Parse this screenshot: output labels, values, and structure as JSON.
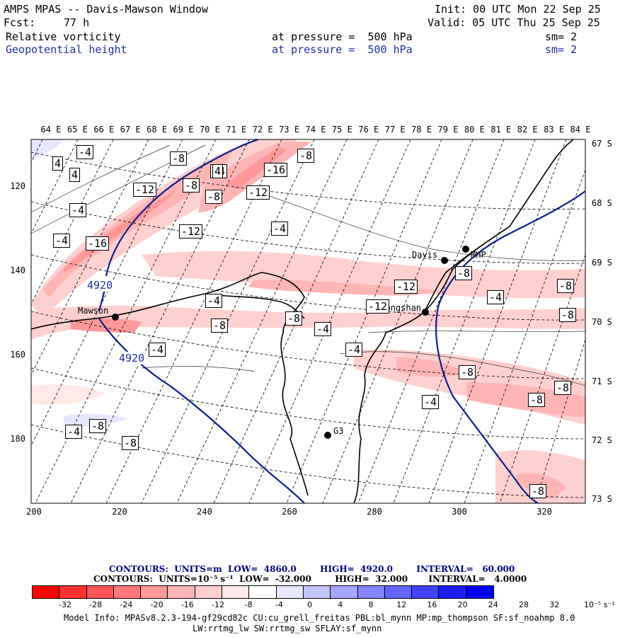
{
  "header": {
    "title": "AMPS MPAS -- Davis-Mawson Window",
    "fcst_label": "Fcst:",
    "fcst_value": "77 h",
    "init": "Init: 00 UTC Mon 22 Sep 25",
    "valid": "Valid: 05 UTC Thu 25 Sep 25",
    "field1": {
      "name": "Relative vorticity",
      "level": "at pressure =  500 hPa",
      "sm": "sm= 2"
    },
    "field2": {
      "name": "Geopotential height",
      "level": "at pressure =  500 hPa",
      "sm": "sm= 2"
    }
  },
  "map": {
    "lon_labels": [
      "64 E",
      "65 E",
      "66 E",
      "67 E",
      "68 E",
      "69 E",
      "70 E",
      "71 E",
      "72 E",
      "73 E",
      "74 E",
      "75 E",
      "76 E",
      "77 E",
      "78 E",
      "79 E",
      "80 E",
      "81 E",
      "82 E",
      "83 E",
      "84 E"
    ],
    "lat_labels": [
      "67 S",
      "68 S",
      "69 S",
      "70 S",
      "71 S",
      "72 S",
      "73 S"
    ],
    "y_ticks": [
      "120",
      "140",
      "160",
      "180"
    ],
    "x_ticks": [
      "200",
      "220",
      "240",
      "260",
      "280",
      "300",
      "320"
    ],
    "stations": [
      {
        "name": "Mawson"
      },
      {
        "name": "Davis"
      },
      {
        "name": "MHP"
      },
      {
        "name": "Zhongshan"
      },
      {
        "name": "G3"
      }
    ],
    "height_labels": [
      "4920",
      "4920"
    ],
    "vort_labels": [
      "-4",
      "4",
      "4",
      "-4",
      "-8",
      "-4",
      "-8",
      "-16",
      "-12",
      "-12",
      "-8",
      "-8",
      "4",
      "-4",
      "-16",
      "-12",
      "-12",
      "-4",
      "-4",
      "-8",
      "-8",
      "-8",
      "-4",
      "-12",
      "-8",
      "-4",
      "-8",
      "-8",
      "-4",
      "-4",
      "-8",
      "-8",
      "-8",
      "-4",
      "-8",
      "-4",
      "-8"
    ]
  },
  "legend": {
    "line1": "CONTOURS:  UNITS=m  LOW=  4860.0        HIGH=  4920.0        INTERVAL=   60.000",
    "line2": "CONTOURS:  UNITS=10⁻⁵ s⁻¹  LOW=  -32.000        HIGH=  32.000       INTERVAL=   4.0000",
    "ticks": [
      "-32",
      "-28",
      "-24",
      "-20",
      "-16",
      "-12",
      "-8",
      "-4",
      "0",
      "4",
      "8",
      "12",
      "16",
      "20",
      "24",
      "28",
      "32"
    ],
    "unit": "10⁻⁵ s⁻¹",
    "colors": [
      "#ff0000",
      "#ff3131",
      "#ff5555",
      "#ff7878",
      "#ff9999",
      "#ffb5b5",
      "#ffd0d0",
      "#ffe9e9",
      "#ffffff",
      "#ffffff",
      "#e6e6ff",
      "#c6c6ff",
      "#a6a6ff",
      "#8585ff",
      "#6464ff",
      "#4242ff",
      "#1d1dff",
      "#0000ff"
    ]
  },
  "footer": {
    "line1": "Model Info: MPASv8.2.3-194-gf29cd82c CU:cu_grell_freitas PBL:bl_mynn MP:mp_thompson SF:sf_noahmp 8.0",
    "line2": "LW:rrtmg_lw SW:rrtmg_sw SFLAY:sf_mynn"
  }
}
